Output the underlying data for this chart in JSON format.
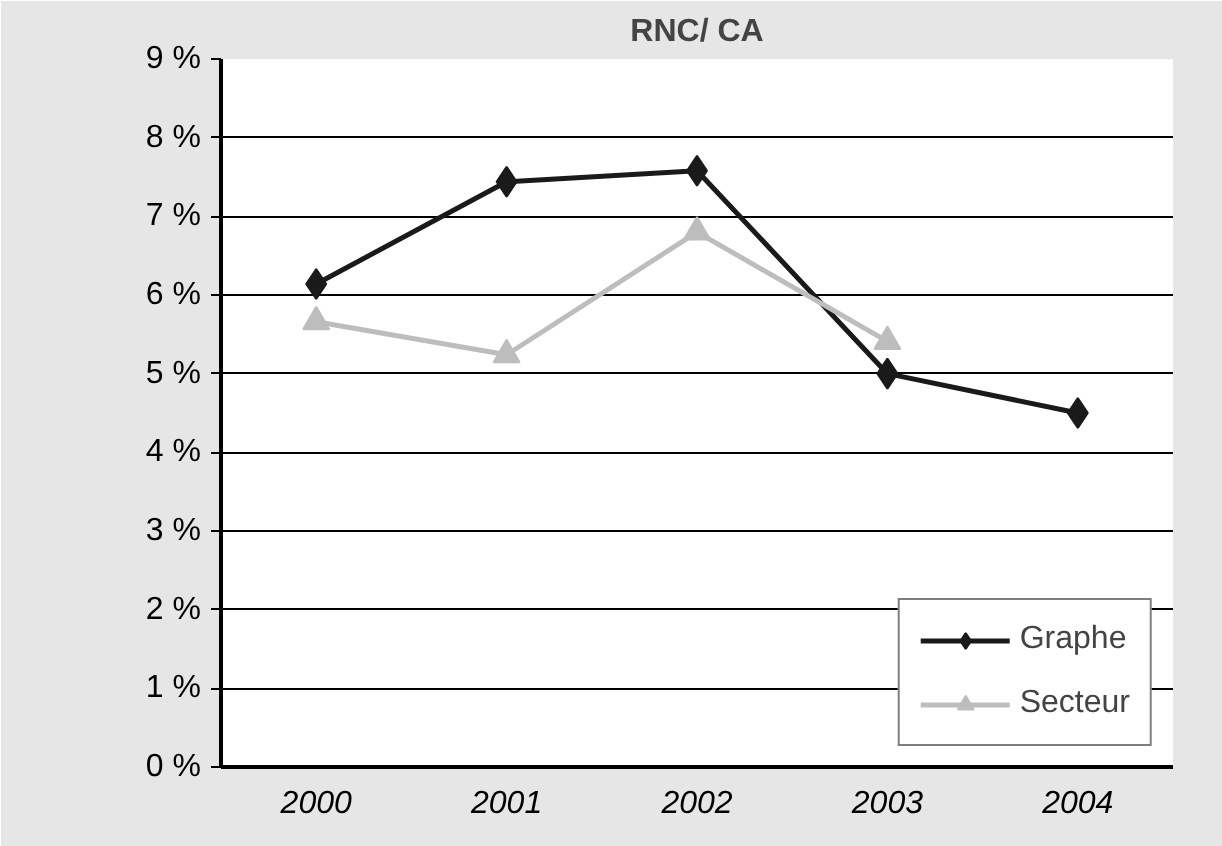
{
  "chart_data": {
    "type": "line",
    "title": "RNC/ CA",
    "categories": [
      "2000",
      "2001",
      "2002",
      "2003",
      "2004"
    ],
    "series": [
      {
        "name": "Graphe",
        "color": "#1a1a1a",
        "marker": "diamond",
        "values": [
          6.14,
          7.44,
          7.58,
          5.0,
          4.5
        ]
      },
      {
        "name": "Secteur",
        "color": "#bdbdbd",
        "marker": "triangle",
        "values": [
          5.66,
          5.24,
          6.8,
          5.41,
          null
        ]
      }
    ],
    "ylim": [
      0,
      9
    ],
    "yticks": [
      {
        "value": 0,
        "label": "0 %"
      },
      {
        "value": 1,
        "label": "1 %"
      },
      {
        "value": 2,
        "label": "2 %"
      },
      {
        "value": 3,
        "label": "3 %"
      },
      {
        "value": 4,
        "label": "4 %"
      },
      {
        "value": 5,
        "label": "5 %"
      },
      {
        "value": 6,
        "label": "6 %"
      },
      {
        "value": 7,
        "label": "7 %"
      },
      {
        "value": 8,
        "label": "8 %"
      },
      {
        "value": 9,
        "label": "9 %"
      }
    ],
    "grid": "y",
    "legend": "bottom right",
    "line_style": "solid"
  }
}
